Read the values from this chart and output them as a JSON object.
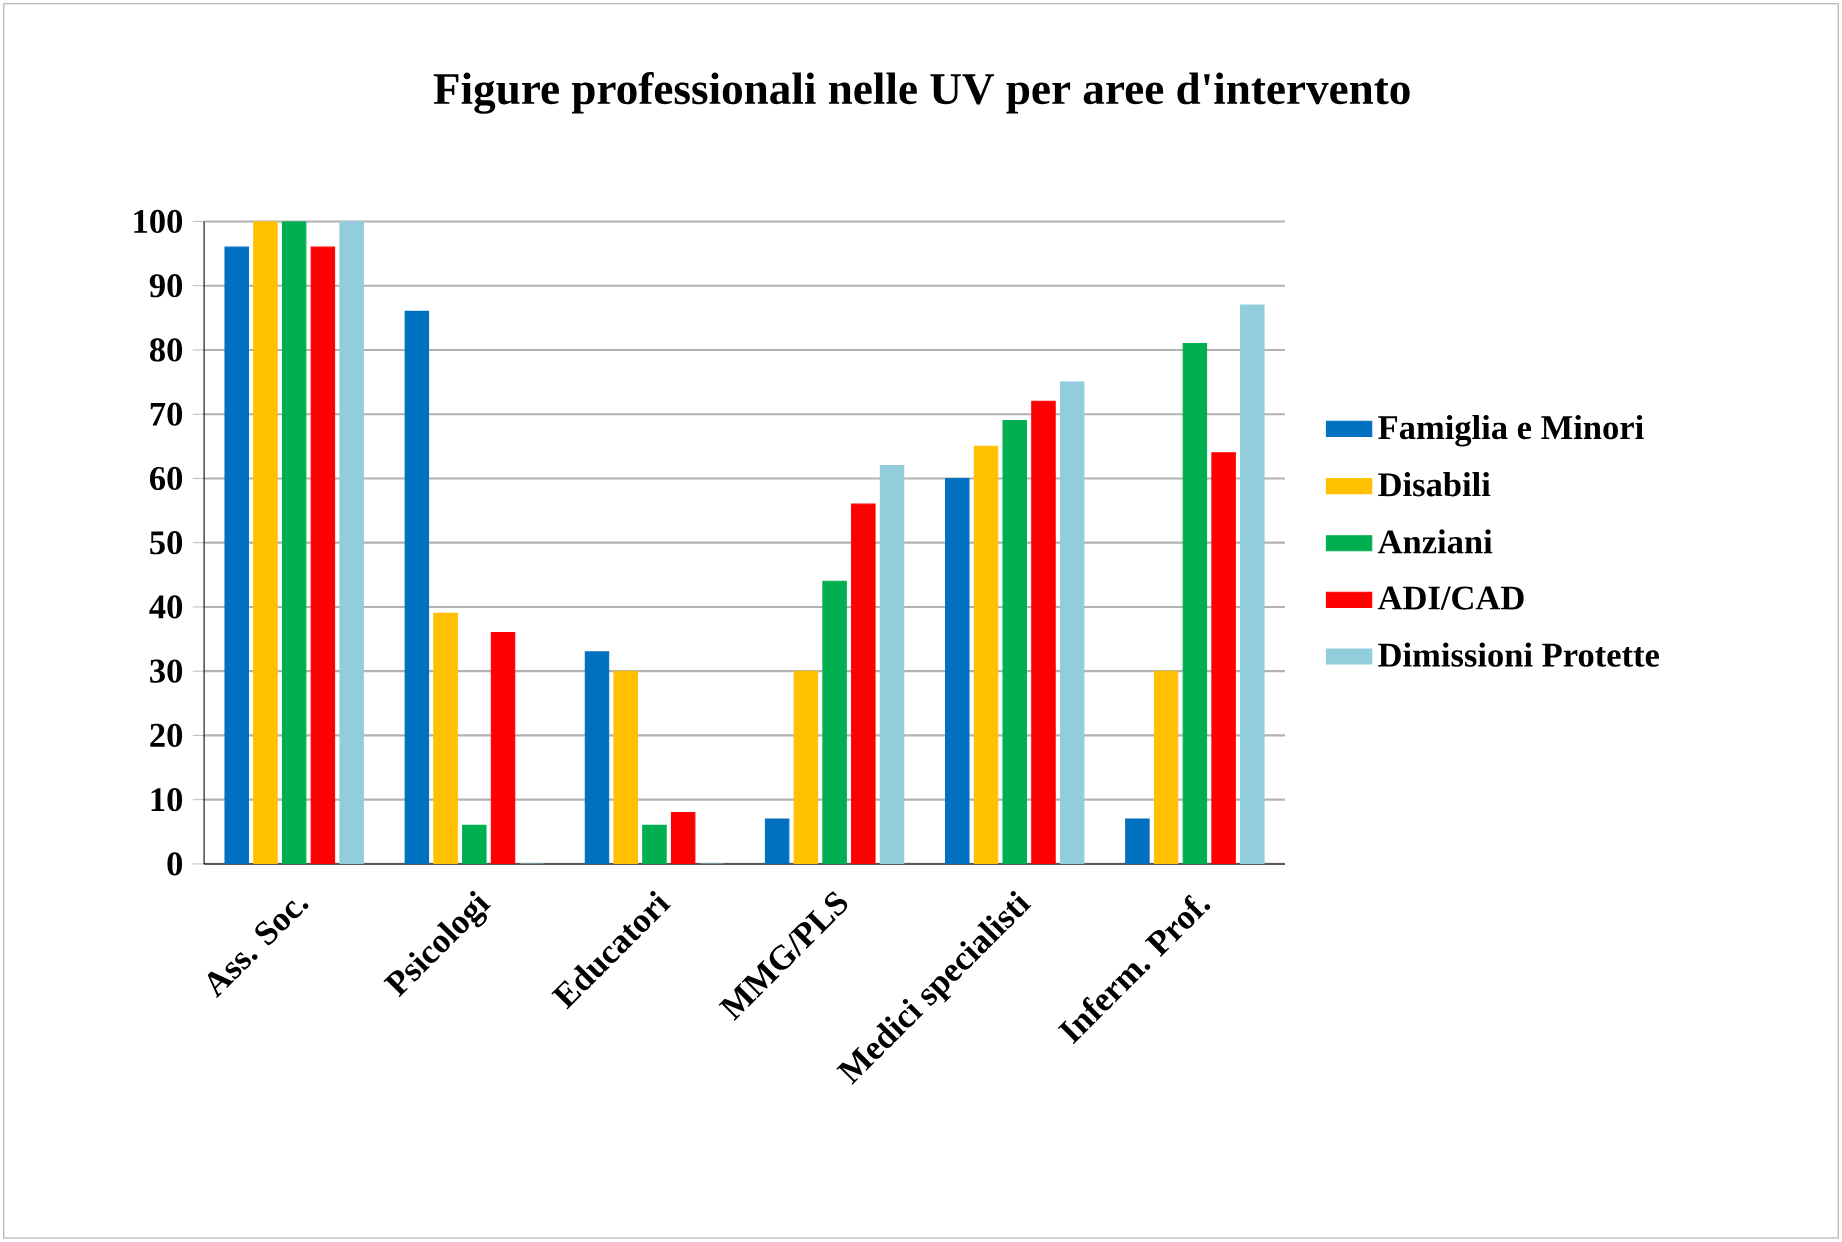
{
  "chart_data": {
    "type": "bar",
    "title": "Figure professionali nelle UV per aree d'intervento",
    "categories": [
      "Ass. Soc.",
      "Psicologi",
      "Educatori",
      "MMG/PLS",
      "Medici specialisti",
      "Inferm. Prof."
    ],
    "series": [
      {
        "name": "Famiglia e Minori",
        "color": "#0070c0",
        "values": [
          96,
          86,
          33,
          7,
          60,
          7
        ]
      },
      {
        "name": "Disabili",
        "color": "#ffc000",
        "values": [
          100,
          39,
          30,
          30,
          65,
          30
        ]
      },
      {
        "name": "Anziani",
        "color": "#00b050",
        "values": [
          100,
          6,
          6,
          44,
          69,
          81
        ]
      },
      {
        "name": "ADI/CAD",
        "color": "#ff0000",
        "values": [
          96,
          36,
          8,
          56,
          72,
          64
        ]
      },
      {
        "name": "Dimissioni Protette",
        "color": "#92cddc",
        "values": [
          100,
          0,
          0,
          62,
          75,
          87
        ]
      }
    ],
    "ylim": [
      0,
      100
    ],
    "yticks": [
      0,
      10,
      20,
      30,
      40,
      50,
      60,
      70,
      80,
      90,
      100
    ],
    "grid": "y",
    "legend": "right"
  }
}
